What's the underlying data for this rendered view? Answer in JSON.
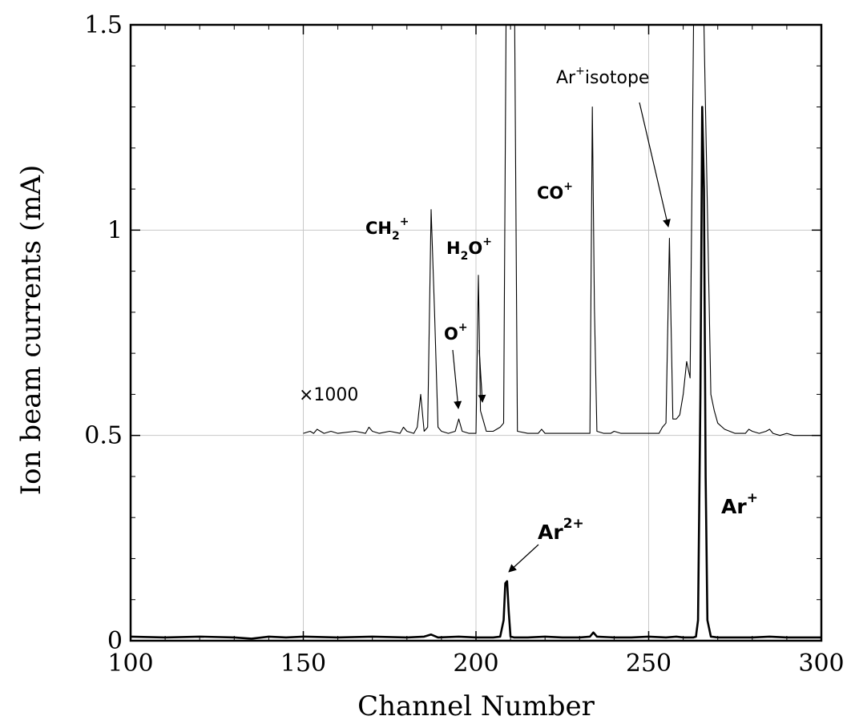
{
  "chart_data": {
    "type": "line",
    "title": "",
    "xlabel": "Channel Number",
    "ylabel": "Ion beam currents (mA)",
    "xlim": [
      100,
      300
    ],
    "ylim": [
      0,
      1.5
    ],
    "grid": true,
    "x_ticks": [
      100,
      150,
      200,
      250,
      300
    ],
    "x_tick_labels": [
      "100",
      "150",
      "200",
      "250",
      "300"
    ],
    "y_ticks": [
      0,
      0.5,
      1,
      1.5
    ],
    "y_tick_labels": [
      "0",
      "0.5",
      "1",
      "1.5"
    ],
    "series": [
      {
        "style": "thin",
        "x": [
          150,
          152,
          153,
          154,
          156,
          158,
          160,
          165,
          168,
          169,
          170,
          172,
          175,
          178,
          179,
          180,
          182,
          183,
          184,
          185,
          186,
          187,
          188,
          189,
          190,
          192,
          194,
          195,
          196,
          198,
          200,
          200.7,
          201.3,
          202,
          203,
          205,
          207,
          208,
          208.7,
          209.2,
          210.7,
          211.2,
          212,
          215,
          218,
          219,
          220,
          225,
          230,
          233,
          233.7,
          234.3,
          235,
          237,
          239,
          240,
          242,
          245,
          250,
          253,
          254,
          255,
          256,
          257,
          258,
          259,
          260,
          261,
          262,
          263,
          264,
          266,
          268,
          269,
          270,
          272,
          275,
          278,
          279,
          280,
          282,
          284,
          285,
          286,
          288,
          290,
          292,
          295,
          298,
          300
        ],
        "y": [
          0.505,
          0.51,
          0.505,
          0.515,
          0.505,
          0.51,
          0.505,
          0.51,
          0.505,
          0.52,
          0.51,
          0.505,
          0.51,
          0.505,
          0.52,
          0.51,
          0.505,
          0.52,
          0.6,
          0.51,
          0.52,
          1.05,
          0.8,
          0.52,
          0.51,
          0.505,
          0.51,
          0.54,
          0.51,
          0.505,
          0.505,
          0.89,
          0.56,
          0.54,
          0.51,
          0.51,
          0.52,
          0.53,
          1.5,
          1.5,
          1.5,
          1.5,
          0.51,
          0.505,
          0.505,
          0.515,
          0.505,
          0.505,
          0.505,
          0.505,
          1.3,
          0.81,
          0.51,
          0.505,
          0.505,
          0.51,
          0.505,
          0.505,
          0.505,
          0.505,
          0.52,
          0.53,
          0.98,
          0.54,
          0.54,
          0.55,
          0.6,
          0.68,
          0.64,
          1.5,
          1.5,
          1.5,
          0.6,
          0.56,
          0.53,
          0.515,
          0.505,
          0.505,
          0.515,
          0.51,
          0.505,
          0.51,
          0.515,
          0.505,
          0.5,
          0.505,
          0.5,
          0.5,
          0.5,
          0.5
        ]
      },
      {
        "style": "bold",
        "x": [
          100,
          110,
          120,
          130,
          135,
          140,
          145,
          150,
          160,
          170,
          180,
          185,
          187,
          189,
          195,
          200,
          205,
          207,
          208,
          208.5,
          209,
          209.5,
          210,
          211,
          215,
          220,
          225,
          230,
          233,
          234,
          235,
          240,
          245,
          250,
          255,
          258,
          260,
          262,
          263,
          263.7,
          264.3,
          265,
          265.5,
          266,
          266.5,
          267,
          268,
          270,
          275,
          280,
          285,
          290,
          295,
          300
        ],
        "y": [
          0.01,
          0.008,
          0.01,
          0.008,
          0.005,
          0.01,
          0.008,
          0.01,
          0.008,
          0.01,
          0.008,
          0.01,
          0.015,
          0.008,
          0.01,
          0.008,
          0.008,
          0.01,
          0.05,
          0.14,
          0.145,
          0.07,
          0.01,
          0.008,
          0.008,
          0.01,
          0.008,
          0.008,
          0.01,
          0.02,
          0.01,
          0.008,
          0.008,
          0.01,
          0.008,
          0.01,
          0.008,
          0.008,
          0.008,
          0.01,
          0.05,
          0.6,
          1.3,
          1.1,
          0.4,
          0.05,
          0.01,
          0.008,
          0.008,
          0.008,
          0.01,
          0.008,
          0.008,
          0.008
        ]
      }
    ],
    "annotations": [
      {
        "id": "x1000",
        "text": "×1000"
      },
      {
        "id": "ch2",
        "text": "CH",
        "sub": "2",
        "sup": "+"
      },
      {
        "id": "h2o",
        "text": "H",
        "sub": "2",
        "rest": "O",
        "sup": "+"
      },
      {
        "id": "o",
        "text": "O",
        "sup": "+"
      },
      {
        "id": "co",
        "text": "CO",
        "sup": "+"
      },
      {
        "id": "ariso",
        "text": "Ar",
        "sup": "+",
        "rest": "isotope"
      },
      {
        "id": "ar2",
        "text": "Ar",
        "sup": "2+"
      },
      {
        "id": "ar1",
        "text": "Ar",
        "sup": "+"
      }
    ]
  }
}
